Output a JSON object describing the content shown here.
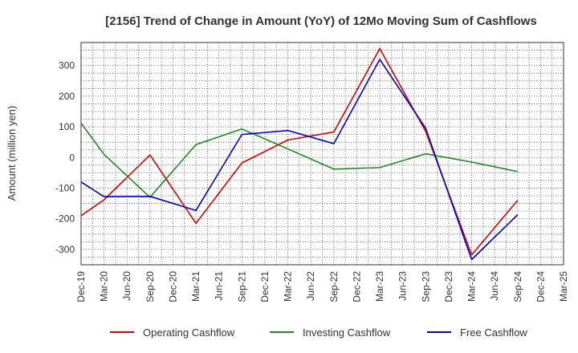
{
  "chart_data": {
    "type": "line",
    "title": "[2156]  Trend of Change in Amount (YoY) of 12Mo Moving Sum of Cashflows",
    "ylabel": "Amount (million yen)",
    "xlabel": "",
    "ylim": [
      -350,
      375
    ],
    "yticks": [
      -300,
      -200,
      -100,
      0,
      100,
      200,
      300
    ],
    "categories": [
      "Dec-19",
      "Mar-20",
      "Jun-20",
      "Sep-20",
      "Dec-20",
      "Mar-21",
      "Jun-21",
      "Sep-21",
      "Dec-21",
      "Mar-22",
      "Jun-22",
      "Sep-22",
      "Dec-22",
      "Mar-23",
      "Jun-23",
      "Sep-23",
      "Dec-23",
      "Mar-24",
      "Jun-24",
      "Sep-24",
      "Dec-24",
      "Mar-25"
    ],
    "grid": true,
    "legend_position": "bottom",
    "series": [
      {
        "name": "Operating Cashflow",
        "color": "#dd0000",
        "values": [
          -190,
          -138,
          null,
          8,
          null,
          -215,
          null,
          -18,
          null,
          57,
          null,
          83,
          null,
          355,
          null,
          85,
          null,
          -318,
          null,
          -140,
          null,
          null
        ]
      },
      {
        "name": "Investing Cashflow",
        "color": "#228822",
        "values": [
          112,
          10,
          null,
          -130,
          null,
          42,
          null,
          93,
          null,
          28,
          null,
          -38,
          null,
          -33,
          null,
          12,
          null,
          -15,
          null,
          -46,
          null,
          null
        ]
      },
      {
        "name": "Free Cashflow",
        "color": "#0000cc",
        "values": [
          -80,
          -128,
          null,
          -127,
          null,
          -173,
          null,
          75,
          null,
          88,
          null,
          45,
          null,
          320,
          null,
          95,
          null,
          -333,
          null,
          -187,
          null,
          null
        ]
      }
    ]
  }
}
